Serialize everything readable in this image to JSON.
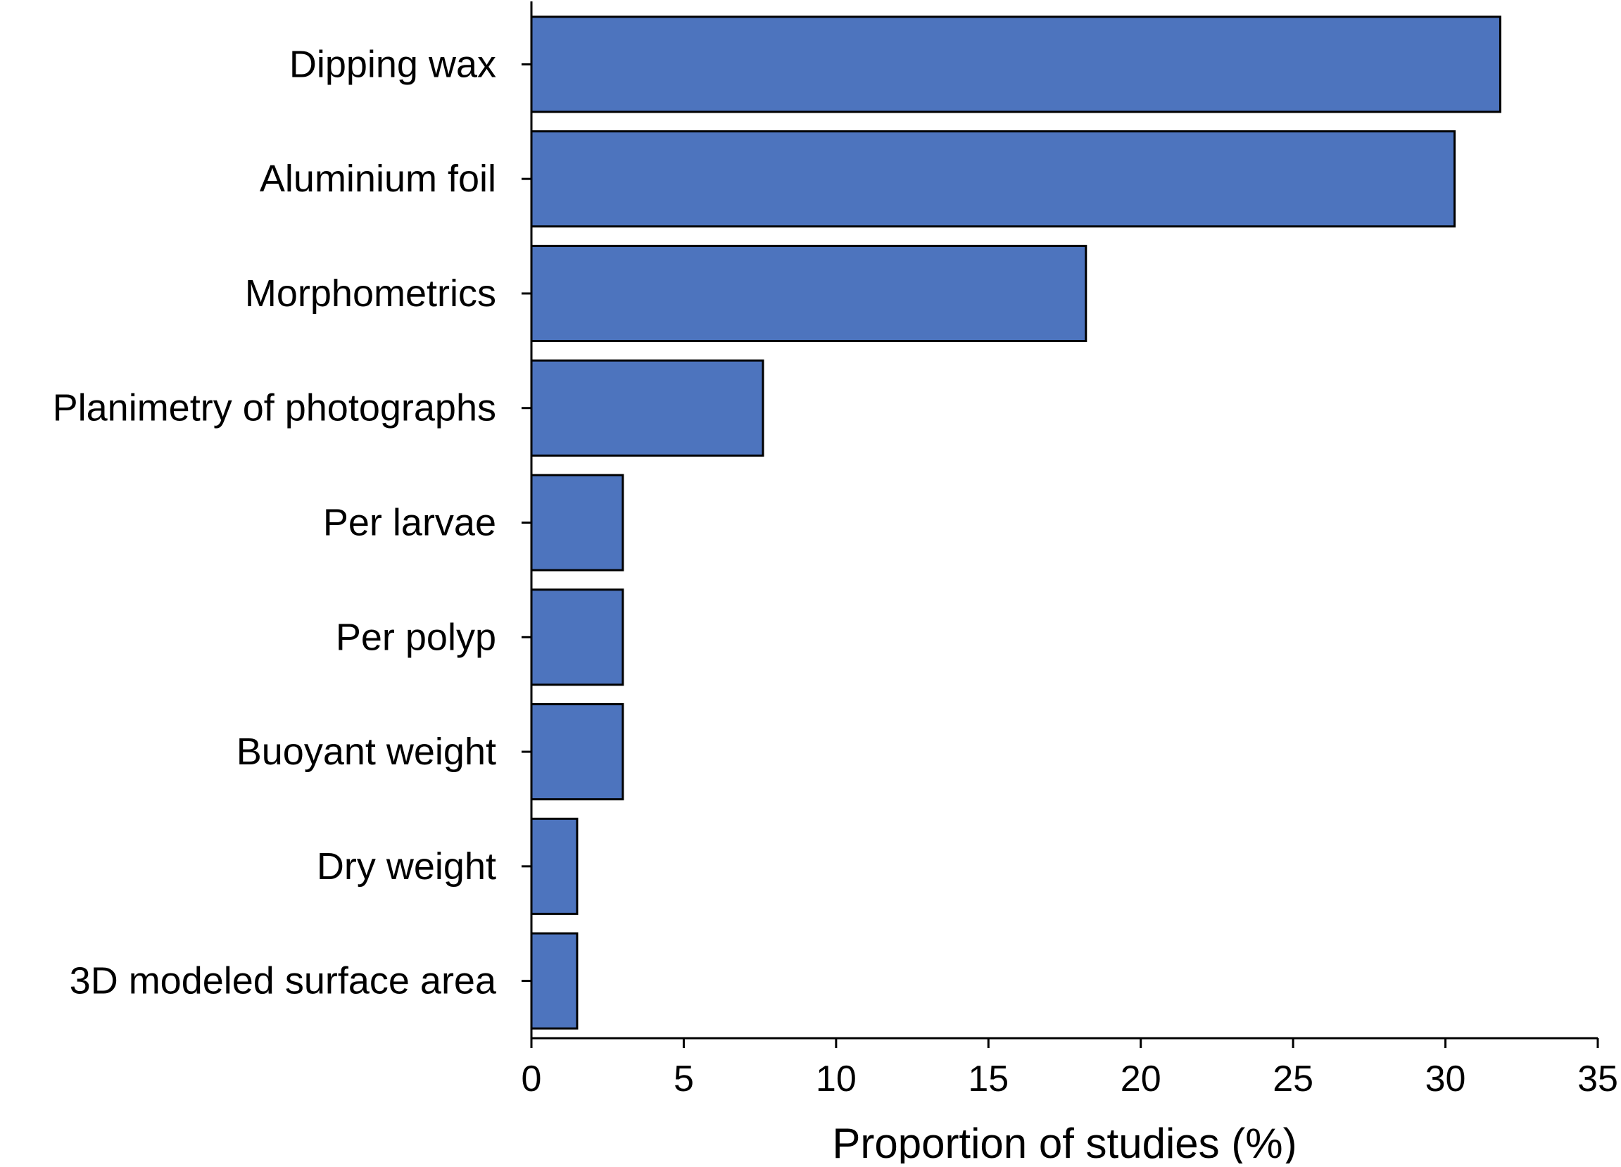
{
  "chart_data": {
    "type": "bar",
    "orientation": "horizontal",
    "title": "",
    "xlabel": "Proportion of studies (%)",
    "ylabel": "",
    "xlim": [
      0,
      35
    ],
    "x_ticks": [
      0,
      5,
      10,
      15,
      20,
      25,
      30,
      35
    ],
    "grid": false,
    "bar_color": "#4D74BE",
    "bar_edge_color": "#000000",
    "categories": [
      "Dipping wax",
      "Aluminium foil",
      "Morphometrics",
      "Planimetry of photographs",
      "Per larvae",
      "Per polyp",
      "Buoyant weight",
      "Dry weight",
      "3D modeled surface area"
    ],
    "values": [
      31.8,
      30.3,
      18.2,
      7.6,
      3.0,
      3.0,
      3.0,
      1.5,
      1.5
    ]
  }
}
